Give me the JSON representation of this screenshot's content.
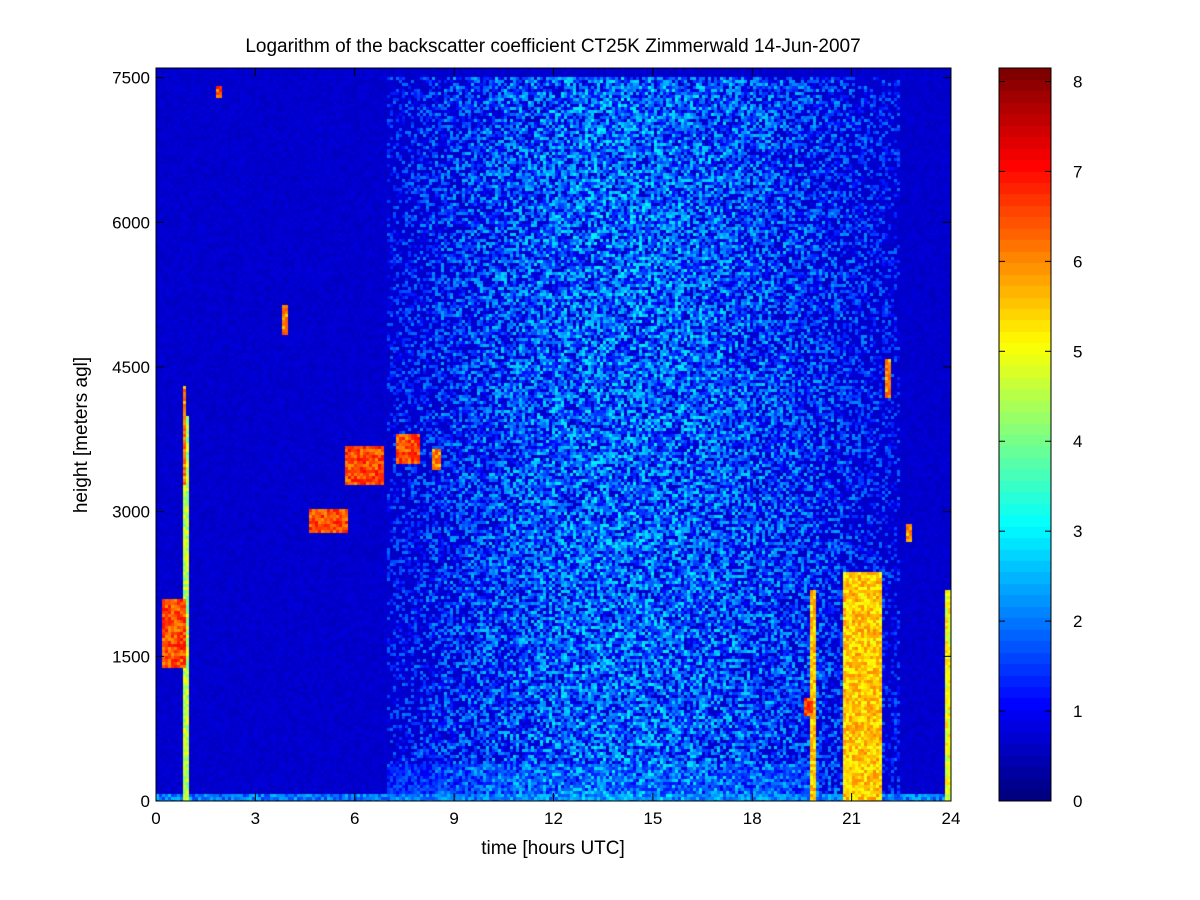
{
  "chart_data": {
    "type": "heatmap",
    "title": "Logarithm of the backscatter coefficient CT25K Zimmerwald 14-Jun-2007",
    "xlabel": "time [hours UTC]",
    "ylabel": "height [meters agl]",
    "xlim": [
      0,
      24
    ],
    "ylim": [
      0,
      7600
    ],
    "x_ticks": [
      0,
      3,
      6,
      9,
      12,
      15,
      18,
      21,
      24
    ],
    "y_ticks": [
      0,
      1500,
      3000,
      4500,
      6000,
      7500
    ],
    "colormap": "jet",
    "colorbar": {
      "range": [
        0,
        8.15
      ],
      "ticks": [
        0,
        1,
        2,
        3,
        4,
        5,
        6,
        7,
        8
      ]
    },
    "background_level": 0.5,
    "noise_region": {
      "time_range": [
        7,
        22.5
      ],
      "peak_time": 14,
      "max_height": 7500,
      "typical_values": [
        1,
        3
      ]
    },
    "features": [
      {
        "name": "surface-layer",
        "time": [
          0,
          24
        ],
        "height": [
          0,
          80
        ],
        "value": 2.0
      },
      {
        "name": "boundary-layer-aerosol",
        "time": [
          7,
          20
        ],
        "height": [
          80,
          400
        ],
        "value": 1.3
      },
      {
        "name": "early-cloud-base",
        "time": [
          0.2,
          0.9
        ],
        "height": [
          1400,
          2100
        ],
        "value": 6.5
      },
      {
        "name": "early-cloud-column",
        "time": [
          0.8,
          1.0
        ],
        "height": [
          0,
          4000
        ],
        "value": 4.5
      },
      {
        "name": "early-cloud-top",
        "time": [
          0.85,
          0.95
        ],
        "height": [
          3300,
          4300
        ],
        "value": 6.0
      },
      {
        "name": "high-speck",
        "time": [
          1.85,
          1.95
        ],
        "height": [
          7300,
          7400
        ],
        "value": 6.5
      },
      {
        "name": "cirrus-speck",
        "time": [
          3.8,
          3.95
        ],
        "height": [
          4850,
          5150
        ],
        "value": 6.0
      },
      {
        "name": "mid-cloud-1",
        "time": [
          4.6,
          5.8
        ],
        "height": [
          2800,
          3050
        ],
        "value": 6.5
      },
      {
        "name": "mid-cloud-2",
        "time": [
          5.7,
          6.9
        ],
        "height": [
          3300,
          3700
        ],
        "value": 6.5
      },
      {
        "name": "mid-cloud-3",
        "time": [
          7.2,
          8.0
        ],
        "height": [
          3500,
          3800
        ],
        "value": 6.5
      },
      {
        "name": "mid-cloud-4",
        "time": [
          8.3,
          8.6
        ],
        "height": [
          3450,
          3650
        ],
        "value": 6.0
      },
      {
        "name": "evening-cloud-a",
        "time": [
          19.6,
          19.8
        ],
        "height": [
          900,
          1100
        ],
        "value": 6.5
      },
      {
        "name": "evening-column-a",
        "time": [
          19.7,
          19.9
        ],
        "height": [
          0,
          2200
        ],
        "value": 5.5
      },
      {
        "name": "evening-column-b",
        "time": [
          20.7,
          21.9
        ],
        "height": [
          0,
          2400
        ],
        "value": 5.5
      },
      {
        "name": "evening-top",
        "time": [
          22.0,
          22.15
        ],
        "height": [
          4200,
          4600
        ],
        "value": 6.0
      },
      {
        "name": "late-cloud",
        "time": [
          22.6,
          22.8
        ],
        "height": [
          2700,
          2900
        ],
        "value": 6.0
      },
      {
        "name": "end-column",
        "time": [
          23.8,
          24.0
        ],
        "height": [
          0,
          2200
        ],
        "value": 5.0
      }
    ]
  }
}
